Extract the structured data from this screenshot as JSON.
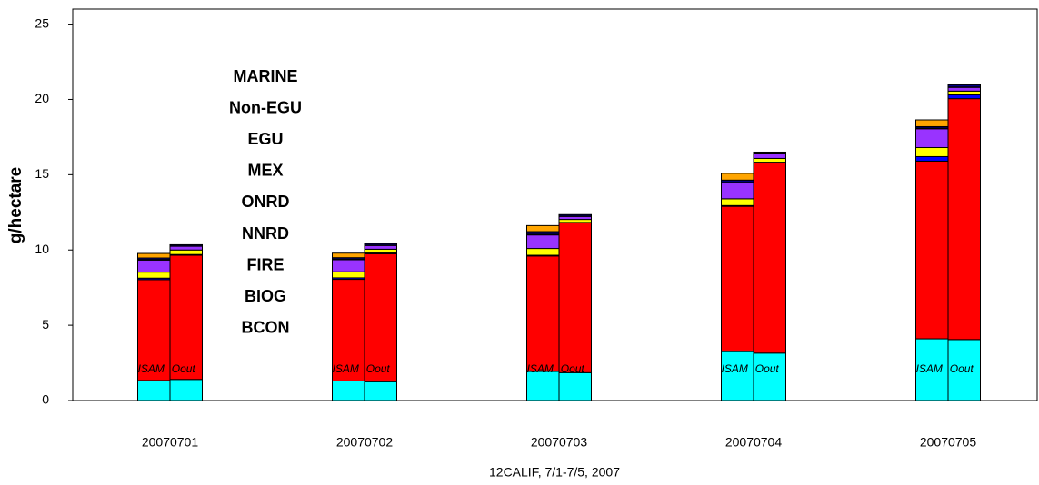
{
  "chart_data": {
    "type": "grouped-stacked-bar",
    "x_title": "12CALIF, 7/1-7/5, 2007",
    "y_title": "g/hectare",
    "categories": [
      "20070701",
      "20070702",
      "20070703",
      "20070704",
      "20070705"
    ],
    "bar_labels": [
      "ISAM",
      "Oout"
    ],
    "ylim": [
      0,
      26
    ],
    "yticks": [
      0,
      5,
      10,
      15,
      20,
      25
    ],
    "series": [
      {
        "name": "BCON",
        "color": "#00ffff",
        "values": [
          [
            1.33,
            1.4
          ],
          [
            1.3,
            1.25
          ],
          [
            1.93,
            1.85
          ],
          [
            3.25,
            3.15
          ],
          [
            4.1,
            4.05
          ]
        ]
      },
      {
        "name": "BIOG",
        "color": "#ff0000",
        "values": [
          [
            6.7,
            8.25
          ],
          [
            6.75,
            8.5
          ],
          [
            7.67,
            9.95
          ],
          [
            9.65,
            12.65
          ],
          [
            11.8,
            16.0
          ]
        ]
      },
      {
        "name": "FIRE",
        "color": "#0000ff",
        "values": [
          [
            0.1,
            0.05
          ],
          [
            0.1,
            0.05
          ],
          [
            0.05,
            0.03
          ],
          [
            0.05,
            0.03
          ],
          [
            0.3,
            0.25
          ]
        ]
      },
      {
        "name": "NNRD",
        "color": "#ffff00",
        "values": [
          [
            0.4,
            0.3
          ],
          [
            0.4,
            0.25
          ],
          [
            0.45,
            0.2
          ],
          [
            0.45,
            0.25
          ],
          [
            0.6,
            0.25
          ]
        ]
      },
      {
        "name": "ONRD",
        "color": "#9933ff",
        "values": [
          [
            0.8,
            0.25
          ],
          [
            0.8,
            0.25
          ],
          [
            0.9,
            0.2
          ],
          [
            1.05,
            0.3
          ],
          [
            1.25,
            0.25
          ]
        ]
      },
      {
        "name": "MEX",
        "color": "#aaaaaa",
        "values": [
          [
            0.02,
            0.01
          ],
          [
            0.02,
            0.01
          ],
          [
            0.02,
            0.01
          ],
          [
            0.02,
            0.01
          ],
          [
            0.02,
            0.01
          ]
        ]
      },
      {
        "name": "EGU",
        "color": "#006600",
        "values": [
          [
            0.02,
            0.01
          ],
          [
            0.02,
            0.01
          ],
          [
            0.02,
            0.01
          ],
          [
            0.02,
            0.01
          ],
          [
            0.02,
            0.01
          ]
        ]
      },
      {
        "name": "Non-EGU",
        "color": "#000080",
        "values": [
          [
            0.1,
            0.08
          ],
          [
            0.1,
            0.1
          ],
          [
            0.18,
            0.1
          ],
          [
            0.15,
            0.1
          ],
          [
            0.1,
            0.15
          ]
        ]
      },
      {
        "name": "MARINE",
        "color": "#ffa500",
        "values": [
          [
            0.3,
            0
          ],
          [
            0.3,
            0
          ],
          [
            0.4,
            0
          ],
          [
            0.45,
            0
          ],
          [
            0.45,
            0
          ]
        ]
      }
    ]
  }
}
